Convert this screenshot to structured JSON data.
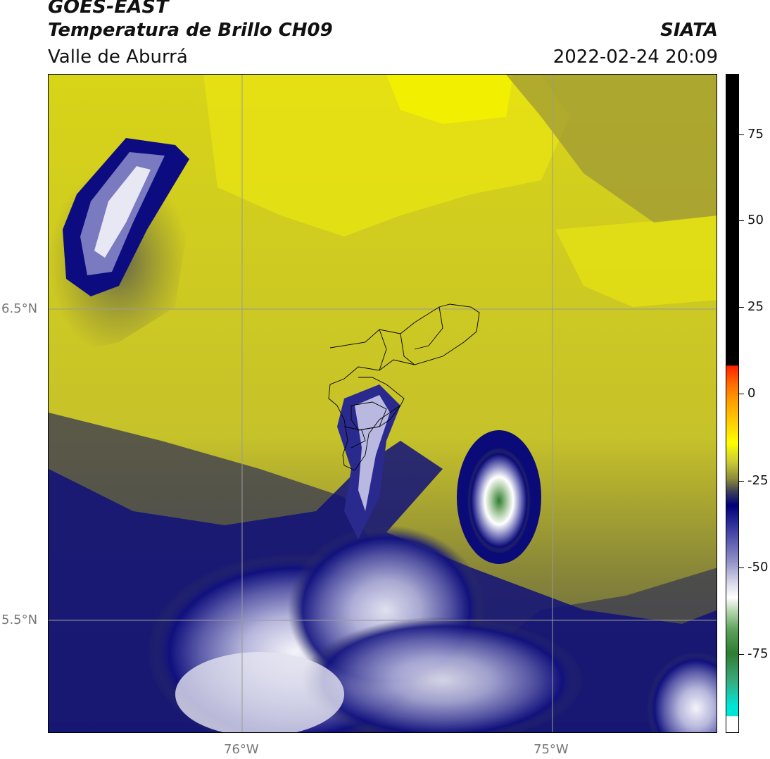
{
  "header": {
    "satellite": "GOES-EAST",
    "product": "Temperatura de Brillo CH09",
    "region": "Valle de Aburrá",
    "agency": "SIATA",
    "datetime": "2022-02-24 20:09"
  },
  "map": {
    "lat_ticks": [
      "6.5°N",
      "5.5°N"
    ],
    "lon_ticks": [
      "76°W",
      "75°W"
    ],
    "gridlines": true
  },
  "colorbar": {
    "ticks": [
      "75",
      "50",
      "25",
      "0",
      "-25",
      "-50",
      "-75"
    ],
    "colors": {
      "black": "#000000",
      "red": "#ff2000",
      "orange": "#ffa500",
      "yellow": "#ffff00",
      "olive": "#8a8a3a",
      "navy": "#00007a",
      "lavender": "#9090c8",
      "white": "#ffffff",
      "green": "#2e7d32",
      "cyan": "#00e5d8"
    }
  }
}
